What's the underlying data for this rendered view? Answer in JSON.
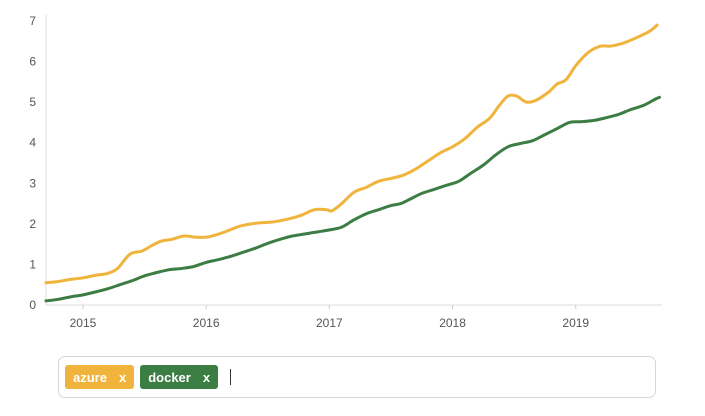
{
  "chart_data": {
    "type": "line",
    "xlim": [
      2014.7,
      2019.7
    ],
    "ylim": [
      0,
      7
    ],
    "x_ticks": [
      2015,
      2016,
      2017,
      2018,
      2019
    ],
    "y_ticks": [
      0,
      1,
      2,
      3,
      4,
      5,
      6,
      7
    ],
    "grid": false,
    "series": [
      {
        "name": "azure",
        "color": "#f0b43c",
        "points": [
          [
            2014.7,
            0.55
          ],
          [
            2014.8,
            0.58
          ],
          [
            2014.9,
            0.63
          ],
          [
            2015.0,
            0.67
          ],
          [
            2015.1,
            0.73
          ],
          [
            2015.2,
            0.78
          ],
          [
            2015.28,
            0.9
          ],
          [
            2015.38,
            1.25
          ],
          [
            2015.48,
            1.33
          ],
          [
            2015.55,
            1.45
          ],
          [
            2015.63,
            1.57
          ],
          [
            2015.72,
            1.62
          ],
          [
            2015.82,
            1.7
          ],
          [
            2015.92,
            1.67
          ],
          [
            2016.02,
            1.68
          ],
          [
            2016.15,
            1.8
          ],
          [
            2016.28,
            1.95
          ],
          [
            2016.42,
            2.02
          ],
          [
            2016.55,
            2.05
          ],
          [
            2016.68,
            2.13
          ],
          [
            2016.78,
            2.22
          ],
          [
            2016.88,
            2.35
          ],
          [
            2016.98,
            2.35
          ],
          [
            2017.02,
            2.32
          ],
          [
            2017.1,
            2.5
          ],
          [
            2017.2,
            2.78
          ],
          [
            2017.3,
            2.9
          ],
          [
            2017.4,
            3.05
          ],
          [
            2017.5,
            3.12
          ],
          [
            2017.6,
            3.2
          ],
          [
            2017.7,
            3.35
          ],
          [
            2017.8,
            3.55
          ],
          [
            2017.9,
            3.75
          ],
          [
            2018.0,
            3.9
          ],
          [
            2018.1,
            4.1
          ],
          [
            2018.2,
            4.38
          ],
          [
            2018.3,
            4.6
          ],
          [
            2018.38,
            4.92
          ],
          [
            2018.45,
            5.15
          ],
          [
            2018.52,
            5.15
          ],
          [
            2018.6,
            5.0
          ],
          [
            2018.68,
            5.05
          ],
          [
            2018.78,
            5.25
          ],
          [
            2018.85,
            5.45
          ],
          [
            2018.92,
            5.55
          ],
          [
            2019.0,
            5.9
          ],
          [
            2019.1,
            6.22
          ],
          [
            2019.2,
            6.38
          ],
          [
            2019.28,
            6.38
          ],
          [
            2019.38,
            6.45
          ],
          [
            2019.5,
            6.6
          ],
          [
            2019.6,
            6.75
          ],
          [
            2019.66,
            6.9
          ]
        ]
      },
      {
        "name": "docker",
        "color": "#3c7d44",
        "points": [
          [
            2014.7,
            0.1
          ],
          [
            2014.8,
            0.14
          ],
          [
            2014.9,
            0.2
          ],
          [
            2015.0,
            0.25
          ],
          [
            2015.1,
            0.32
          ],
          [
            2015.2,
            0.4
          ],
          [
            2015.3,
            0.5
          ],
          [
            2015.4,
            0.6
          ],
          [
            2015.5,
            0.72
          ],
          [
            2015.6,
            0.8
          ],
          [
            2015.7,
            0.87
          ],
          [
            2015.8,
            0.9
          ],
          [
            2015.9,
            0.95
          ],
          [
            2016.0,
            1.05
          ],
          [
            2016.1,
            1.12
          ],
          [
            2016.2,
            1.2
          ],
          [
            2016.3,
            1.3
          ],
          [
            2016.4,
            1.4
          ],
          [
            2016.5,
            1.52
          ],
          [
            2016.6,
            1.62
          ],
          [
            2016.7,
            1.7
          ],
          [
            2016.8,
            1.75
          ],
          [
            2016.9,
            1.8
          ],
          [
            2017.0,
            1.85
          ],
          [
            2017.1,
            1.92
          ],
          [
            2017.2,
            2.1
          ],
          [
            2017.3,
            2.25
          ],
          [
            2017.4,
            2.35
          ],
          [
            2017.5,
            2.45
          ],
          [
            2017.58,
            2.5
          ],
          [
            2017.65,
            2.6
          ],
          [
            2017.75,
            2.75
          ],
          [
            2017.85,
            2.85
          ],
          [
            2017.95,
            2.95
          ],
          [
            2018.05,
            3.05
          ],
          [
            2018.15,
            3.25
          ],
          [
            2018.25,
            3.45
          ],
          [
            2018.35,
            3.7
          ],
          [
            2018.45,
            3.9
          ],
          [
            2018.55,
            3.98
          ],
          [
            2018.65,
            4.05
          ],
          [
            2018.75,
            4.2
          ],
          [
            2018.85,
            4.35
          ],
          [
            2018.95,
            4.5
          ],
          [
            2019.05,
            4.52
          ],
          [
            2019.15,
            4.55
          ],
          [
            2019.25,
            4.62
          ],
          [
            2019.35,
            4.7
          ],
          [
            2019.45,
            4.82
          ],
          [
            2019.55,
            4.92
          ],
          [
            2019.65,
            5.08
          ],
          [
            2019.68,
            5.12
          ]
        ]
      }
    ]
  },
  "tags": [
    {
      "label": "azure",
      "remove": "x",
      "color": "#f0b43c"
    },
    {
      "label": "docker",
      "remove": "x",
      "color": "#3c7d44"
    }
  ]
}
